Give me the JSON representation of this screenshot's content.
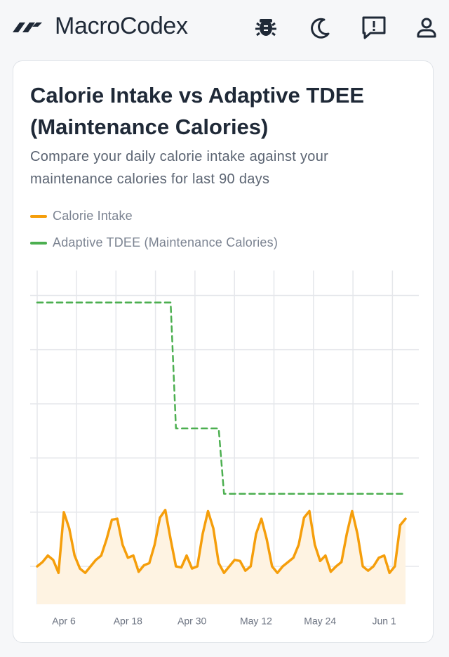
{
  "header": {
    "brand": "MacroCodex"
  },
  "chart_data": {
    "type": "line",
    "title": "Calorie Intake vs Adaptive TDEE (Maintenance Calories)",
    "subtitle": "Compare your daily calorie intake against your maintenance calories for last 90 days",
    "categories": [
      null,
      null,
      null,
      null,
      null,
      "Apr 6",
      null,
      null,
      null,
      null,
      null,
      null,
      null,
      null,
      null,
      null,
      null,
      "Apr 18",
      null,
      null,
      null,
      null,
      null,
      null,
      null,
      null,
      null,
      null,
      null,
      "Apr 30",
      null,
      null,
      null,
      null,
      null,
      null,
      null,
      null,
      null,
      null,
      null,
      "May 12",
      null,
      null,
      null,
      null,
      null,
      null,
      null,
      null,
      null,
      null,
      null,
      "May 24",
      null,
      null,
      null,
      null,
      null,
      null,
      null,
      null,
      null,
      null,
      null,
      "Jun 1",
      null,
      null,
      null,
      null
    ],
    "series": [
      {
        "name": "Calorie Intake",
        "color": "#f59e0b",
        "fill": "#fef3e2",
        "values": [
          1500,
          1540,
          1600,
          1560,
          1440,
          2000,
          1850,
          1600,
          1480,
          1440,
          1500,
          1560,
          1600,
          1750,
          1930,
          1940,
          1700,
          1580,
          1600,
          1450,
          1510,
          1530,
          1700,
          1950,
          2020,
          1750,
          1500,
          1490,
          1600,
          1480,
          1500,
          1800,
          2010,
          1850,
          1530,
          1440,
          1500,
          1560,
          1550,
          1460,
          1500,
          1800,
          1940,
          1750,
          1500,
          1440,
          1500,
          1540,
          1580,
          1700,
          1950,
          2010,
          1700,
          1550,
          1600,
          1450,
          1500,
          1540,
          1800,
          2010,
          1800,
          1500,
          1460,
          1500,
          1580,
          1600,
          1440,
          1500,
          1880,
          1940
        ]
      },
      {
        "name": "Adaptive TDEE (Maintenance Calories)",
        "color": "#4caf50",
        "dashed": true,
        "values": [
          3935,
          3935,
          3935,
          3935,
          3935,
          3935,
          3935,
          3935,
          3935,
          3935,
          3935,
          3935,
          3935,
          3935,
          3935,
          3935,
          3935,
          3935,
          3935,
          3935,
          3935,
          3935,
          3935,
          3935,
          3935,
          3935,
          2773,
          2773,
          2773,
          2773,
          2773,
          2773,
          2773,
          2773,
          2773,
          2169,
          2169,
          2169,
          2169,
          2169,
          2169,
          2169,
          2169,
          2169,
          2169,
          2169,
          2169,
          2169,
          2169,
          2169,
          2169,
          2169,
          2169,
          2169,
          2169,
          2169,
          2169,
          2169,
          2169,
          2169,
          2169,
          2169,
          2169,
          2169,
          2169,
          2169,
          2169,
          2169,
          2169,
          2169
        ]
      }
    ],
    "ylim": [
      1150,
      4230
    ],
    "yticks": [
      1500,
      2000,
      2500,
      3000,
      3500,
      4000
    ],
    "grid": true
  }
}
